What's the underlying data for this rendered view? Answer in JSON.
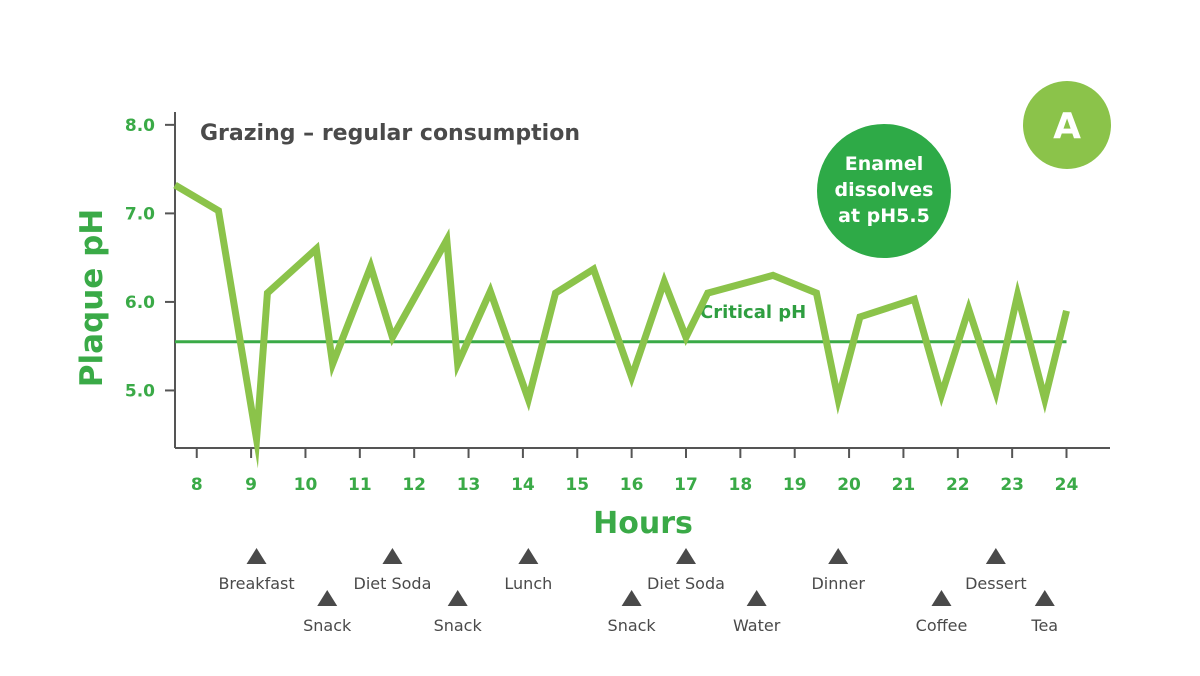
{
  "badge": {
    "label": "A",
    "color": "#8bc34a"
  },
  "callout": {
    "lines": [
      "Enamel",
      "dissolves",
      "at pH5.5"
    ],
    "color": "#2eaa47"
  },
  "critical": {
    "label": "Critical pH",
    "value": 5.55,
    "color": "#3aaa47"
  },
  "colors": {
    "line": "#8bc34a",
    "axis_text": "#3aaa47",
    "axis": "#555555",
    "marker": "#4a4a4a"
  },
  "chart_data": {
    "type": "line",
    "title": "Grazing – regular consumption",
    "xlabel": "Hours",
    "ylabel": "Plaque pH",
    "xlim": [
      7.6,
      24.8
    ],
    "ylim": [
      4.35,
      8.1
    ],
    "x_ticks": [
      8,
      9,
      10,
      11,
      12,
      13,
      14,
      15,
      16,
      17,
      18,
      19,
      20,
      21,
      22,
      23,
      24
    ],
    "y_ticks": [
      5.0,
      6.0,
      7.0,
      8.0
    ],
    "y_tick_labels": [
      "5.0",
      "6.0",
      "7.0",
      "8.0"
    ],
    "grid": false,
    "series": [
      {
        "points": [
          [
            7.6,
            7.32
          ],
          [
            8.4,
            7.03
          ],
          [
            9.1,
            4.45
          ],
          [
            9.3,
            6.1
          ],
          [
            10.2,
            6.6
          ],
          [
            10.5,
            5.3
          ],
          [
            11.2,
            6.4
          ],
          [
            11.6,
            5.6
          ],
          [
            12.6,
            6.7
          ],
          [
            12.8,
            5.3
          ],
          [
            13.4,
            6.12
          ],
          [
            14.1,
            4.9
          ],
          [
            14.6,
            6.1
          ],
          [
            15.3,
            6.37
          ],
          [
            16.0,
            5.15
          ],
          [
            16.6,
            6.23
          ],
          [
            17.0,
            5.6
          ],
          [
            17.4,
            6.1
          ],
          [
            18.6,
            6.3
          ],
          [
            19.4,
            6.1
          ],
          [
            19.8,
            4.9
          ],
          [
            20.2,
            5.83
          ],
          [
            21.2,
            6.03
          ],
          [
            21.7,
            4.95
          ],
          [
            22.2,
            5.92
          ],
          [
            22.7,
            4.98
          ],
          [
            23.1,
            6.08
          ],
          [
            23.6,
            4.9
          ],
          [
            24.0,
            5.9
          ]
        ]
      }
    ]
  },
  "events": [
    {
      "label": "Breakfast",
      "x": 9.1,
      "row": 1
    },
    {
      "label": "Snack",
      "x": 10.4,
      "row": 2
    },
    {
      "label": "Diet Soda",
      "x": 11.6,
      "row": 1
    },
    {
      "label": "Snack",
      "x": 12.8,
      "row": 2
    },
    {
      "label": "Lunch",
      "x": 14.1,
      "row": 1
    },
    {
      "label": "Snack",
      "x": 16.0,
      "row": 2
    },
    {
      "label": "Diet Soda",
      "x": 17.0,
      "row": 1
    },
    {
      "label": "Water",
      "x": 18.3,
      "row": 2
    },
    {
      "label": "Dinner",
      "x": 19.8,
      "row": 1
    },
    {
      "label": "Coffee",
      "x": 21.7,
      "row": 2
    },
    {
      "label": "Dessert",
      "x": 22.7,
      "row": 1
    },
    {
      "label": "Tea",
      "x": 23.6,
      "row": 2
    }
  ]
}
